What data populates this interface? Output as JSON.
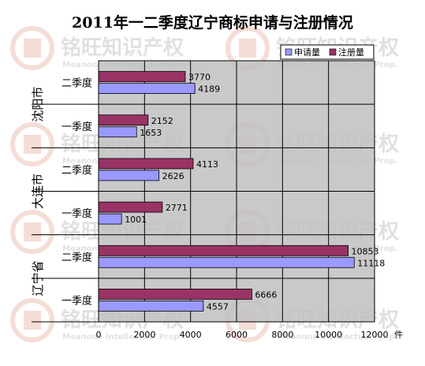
{
  "chart_data": {
    "type": "bar",
    "orientation": "horizontal",
    "title": "2011年一二季度辽宁商标申请与注册情况",
    "x_unit": "件",
    "xlim": [
      0,
      12000
    ],
    "x_ticks": [
      "0",
      "2000",
      "4000",
      "6000",
      "8000",
      "10000",
      "12000"
    ],
    "grid": true,
    "legend_position": "top-right",
    "groups": [
      {
        "name": "沈阳市",
        "rows": [
          {
            "category": "二季度",
            "registered": 3770,
            "applied": 4189
          },
          {
            "category": "一季度",
            "registered": 2152,
            "applied": 1653
          }
        ]
      },
      {
        "name": "大连市",
        "rows": [
          {
            "category": "二季度",
            "registered": 4113,
            "applied": 2626
          },
          {
            "category": "一季度",
            "registered": 2771,
            "applied": 1001
          }
        ]
      },
      {
        "name": "辽宁省",
        "rows": [
          {
            "category": "二季度",
            "registered": 10853,
            "applied": 11118
          },
          {
            "category": "一季度",
            "registered": 6666,
            "applied": 4557
          }
        ]
      }
    ],
    "series": [
      {
        "key": "applied",
        "name": "申请量",
        "color": "#9999ff"
      },
      {
        "key": "registered",
        "name": "注册量",
        "color": "#993366"
      }
    ]
  },
  "watermark": {
    "text": "铭旺知识产权",
    "subtext": "Meanone Intellectual Prop."
  },
  "colors": {
    "plot_background": "#c0c0c0",
    "gridline": "#000000"
  }
}
